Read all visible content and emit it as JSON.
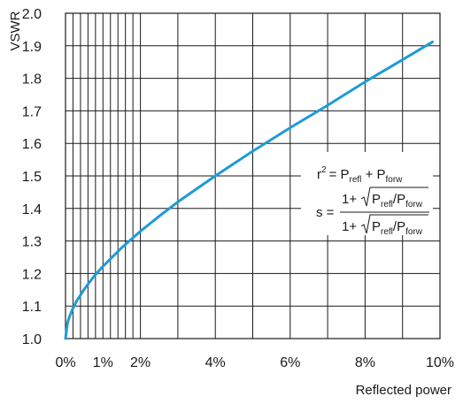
{
  "chart_data": {
    "type": "line",
    "title": "",
    "xlabel": "Reflected power",
    "ylabel": "VSWR",
    "xlim": [
      0,
      10
    ],
    "ylim": [
      1.0,
      2.0
    ],
    "x_tick_values": [
      0,
      1,
      2,
      4,
      6,
      8,
      10
    ],
    "x_tick_labels": [
      "0%",
      "1%",
      "2%",
      "4%",
      "6%",
      "8%",
      "10%"
    ],
    "y_tick_values": [
      1.0,
      1.1,
      1.2,
      1.3,
      1.4,
      1.5,
      1.6,
      1.7,
      1.8,
      1.9,
      2.0
    ],
    "y_tick_labels": [
      "1.0",
      "1.1",
      "1.2",
      "1.3",
      "1.4",
      "1.5",
      "1.6",
      "1.7",
      "1.8",
      "1.9",
      "2.0"
    ],
    "grid": true,
    "series": [
      {
        "color": "#1e9bd7",
        "x": [
          0,
          0.05,
          0.1,
          0.2,
          0.3,
          0.5,
          0.75,
          1,
          1.5,
          2,
          2.5,
          3,
          4,
          5,
          6,
          7,
          8,
          9,
          9.8
        ],
        "y": [
          1.0,
          1.046,
          1.065,
          1.094,
          1.116,
          1.152,
          1.19,
          1.222,
          1.279,
          1.33,
          1.376,
          1.42,
          1.5,
          1.576,
          1.648,
          1.717,
          1.789,
          1.857,
          1.912
        ]
      }
    ],
    "annotation": {
      "line1": {
        "r": "r",
        "sup2": "2",
        "eq_p": "= P",
        "refl": "refl",
        "plus_p": " + P",
        "forw": "forw"
      },
      "line2": {
        "s_eq": "s =",
        "one_plus": "1+",
        "p1": "P",
        "refl": "refl",
        "slash_p": "/P",
        "forw": "forw"
      }
    }
  }
}
